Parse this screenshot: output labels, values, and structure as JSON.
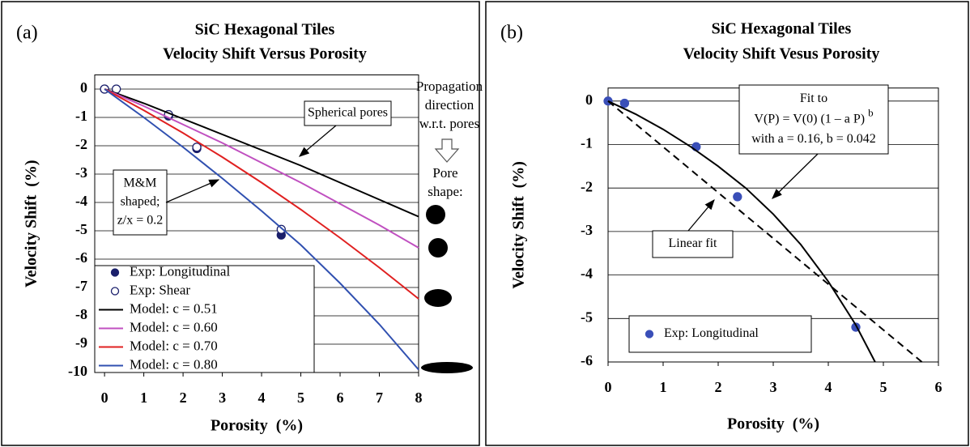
{
  "chart_data": [
    {
      "type": "line",
      "panel_label": "(a)",
      "title": [
        "SiC Hexagonal Tiles",
        "Velocity Shift Versus Porosity"
      ],
      "xlabel": "Porosity  (%)",
      "ylabel": "Velocity Shift  (%)",
      "xlim": [
        -0.25,
        8
      ],
      "ylim": [
        -10,
        0.5
      ],
      "xticks": [
        0,
        1,
        2,
        3,
        4,
        5,
        6,
        7,
        8
      ],
      "yticks": [
        0,
        -1,
        -2,
        -3,
        -4,
        -5,
        -6,
        -7,
        -8,
        -9,
        -10
      ],
      "grid": true,
      "series": [
        {
          "name": "Exp: Longitudinal",
          "kind": "scatter",
          "marker": "filled",
          "color": "#1a1f6b",
          "x": [
            0,
            1.63,
            2.35,
            4.5
          ],
          "values": [
            0,
            -0.95,
            -2.1,
            -5.15
          ]
        },
        {
          "name": "Exp: Shear",
          "kind": "scatter",
          "marker": "open",
          "color": "#1a1f6b",
          "x": [
            0,
            0.3,
            1.63,
            2.35,
            4.5
          ],
          "values": [
            0,
            0,
            -0.9,
            -2.05,
            -4.95
          ]
        },
        {
          "name": "Model: c = 0.51",
          "kind": "line",
          "color": "#000000",
          "x": [
            0,
            1,
            2,
            3,
            4,
            5,
            6,
            7,
            8
          ],
          "values": [
            0,
            -0.5,
            -1.05,
            -1.6,
            -2.15,
            -2.7,
            -3.3,
            -3.9,
            -4.5
          ]
        },
        {
          "name": "Model: c = 0.60",
          "kind": "line",
          "color": "#c050c0",
          "x": [
            0,
            1,
            2,
            3,
            4,
            5,
            6,
            7,
            8
          ],
          "values": [
            0,
            -0.6,
            -1.25,
            -1.9,
            -2.6,
            -3.3,
            -4.05,
            -4.8,
            -5.6
          ]
        },
        {
          "name": "Model: c = 0.70",
          "kind": "line",
          "color": "#e02020",
          "x": [
            0,
            1,
            2,
            3,
            4,
            5,
            6,
            7,
            8
          ],
          "values": [
            0,
            -0.75,
            -1.55,
            -2.4,
            -3.3,
            -4.25,
            -5.25,
            -6.3,
            -7.4
          ]
        },
        {
          "name": "Model: c = 0.80",
          "kind": "line",
          "color": "#3050b0",
          "x": [
            0,
            1,
            2,
            3,
            4,
            5,
            6,
            7,
            8
          ],
          "values": [
            0,
            -1.0,
            -2.05,
            -3.15,
            -4.3,
            -5.5,
            -6.85,
            -8.3,
            -9.9
          ]
        }
      ],
      "annotations": [
        {
          "lines": [
            "Spherical pores"
          ]
        },
        {
          "lines": [
            "M&M",
            "shaped;",
            "z/x = 0.2"
          ]
        }
      ],
      "side_labels": {
        "propagation": [
          "Propagation",
          "direction",
          "w.r.t. pores"
        ],
        "pore_shape": [
          "Pore",
          "shape:"
        ]
      }
    },
    {
      "type": "line",
      "panel_label": "(b)",
      "title": [
        "SiC Hexagonal Tiles",
        "Velocity Shift Vesus Porosity"
      ],
      "xlabel": "Porosity  (%)",
      "ylabel": "Velocity Shift  (%)",
      "xlim": [
        0,
        6
      ],
      "ylim": [
        -6,
        0.3
      ],
      "xticks": [
        0,
        1,
        2,
        3,
        4,
        5,
        6
      ],
      "yticks": [
        0,
        -1,
        -2,
        -3,
        -4,
        -5,
        -6
      ],
      "grid": true,
      "series": [
        {
          "name": "Exp: Longitudinal",
          "kind": "scatter",
          "marker": "filled",
          "color": "#3a4fb8",
          "x": [
            0,
            0.3,
            1.6,
            2.35,
            4.5
          ],
          "values": [
            0,
            -0.05,
            -1.05,
            -2.2,
            -5.2
          ]
        },
        {
          "kind": "line",
          "color": "#000000",
          "x": [
            0,
            0.5,
            1,
            1.5,
            2,
            2.5,
            3,
            3.5,
            4,
            4.5,
            4.85
          ],
          "values": [
            0,
            -0.3,
            -0.65,
            -1.05,
            -1.5,
            -2.0,
            -2.6,
            -3.3,
            -4.15,
            -5.15,
            -6
          ]
        },
        {
          "kind": "line",
          "dash": true,
          "color": "#000000",
          "x": [
            0,
            5.7
          ],
          "values": [
            0,
            -6
          ]
        }
      ],
      "annotations": [
        {
          "lines": [
            "Fit to",
            {
              "text": "V(P) = V(0) (1 – a P) ",
              "sup": "b"
            },
            "with a = 0.16, b = 0.042"
          ]
        },
        {
          "lines": [
            "Linear fit"
          ]
        }
      ]
    }
  ]
}
